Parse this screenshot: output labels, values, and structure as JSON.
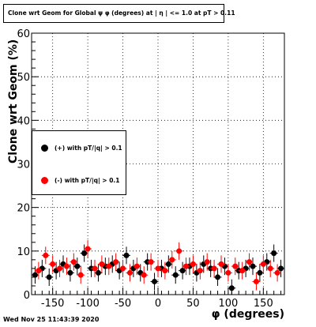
{
  "title": "Clone wrt Geom for Global ψ φ (degrees) at | η | <= 1.0 at pT > 0.11",
  "footer": "Wed Nov 25 11:43:39 2020",
  "chart_data": {
    "type": "scatter",
    "xlabel": "φ (degrees)",
    "ylabel": "Clone wrt Geom (%)",
    "xlim": [
      -180,
      180
    ],
    "ylim": [
      0,
      60
    ],
    "x_ticks": [
      -150,
      -100,
      -50,
      0,
      50,
      100,
      150
    ],
    "y_ticks": [
      0,
      10,
      20,
      30,
      40,
      50,
      60
    ],
    "grid": true,
    "legend_position": "left-middle",
    "series": [
      {
        "name": "(+) with pT/|q| > 0.1",
        "color": "#000000",
        "x": [
          -175,
          -165,
          -155,
          -145,
          -135,
          -125,
          -115,
          -105,
          -95,
          -85,
          -75,
          -65,
          -55,
          -45,
          -35,
          -25,
          -15,
          -5,
          5,
          15,
          25,
          35,
          45,
          55,
          65,
          75,
          85,
          95,
          105,
          115,
          125,
          135,
          145,
          155,
          165,
          175
        ],
        "y": [
          4.5,
          6,
          4,
          5.5,
          7,
          5,
          6.5,
          9.5,
          6,
          5,
          6.5,
          7,
          5.5,
          9,
          6,
          5,
          7.5,
          3,
          6,
          7,
          4.5,
          5.5,
          6.5,
          5,
          7,
          6,
          4,
          6.5,
          1.5,
          5.5,
          6,
          6.5,
          5,
          7.5,
          9.5,
          6
        ]
      },
      {
        "name": "(-) with pT/|q| > 0.1",
        "color": "#ff0000",
        "x": [
          -170,
          -160,
          -150,
          -140,
          -130,
          -120,
          -110,
          -100,
          -90,
          -80,
          -70,
          -60,
          -50,
          -40,
          -30,
          -20,
          -10,
          0,
          10,
          20,
          30,
          40,
          50,
          60,
          70,
          80,
          90,
          100,
          110,
          120,
          130,
          140,
          150,
          160,
          170
        ],
        "y": [
          5.5,
          9,
          7,
          6,
          6.5,
          7.5,
          4.5,
          10.5,
          6,
          7,
          6.5,
          7.5,
          6,
          5,
          6.5,
          4.5,
          7.5,
          6,
          5.5,
          8,
          10,
          6.5,
          7,
          5.5,
          7.5,
          6,
          7,
          5,
          6.5,
          5.5,
          7.5,
          3,
          7,
          6,
          5
        ]
      }
    ]
  }
}
